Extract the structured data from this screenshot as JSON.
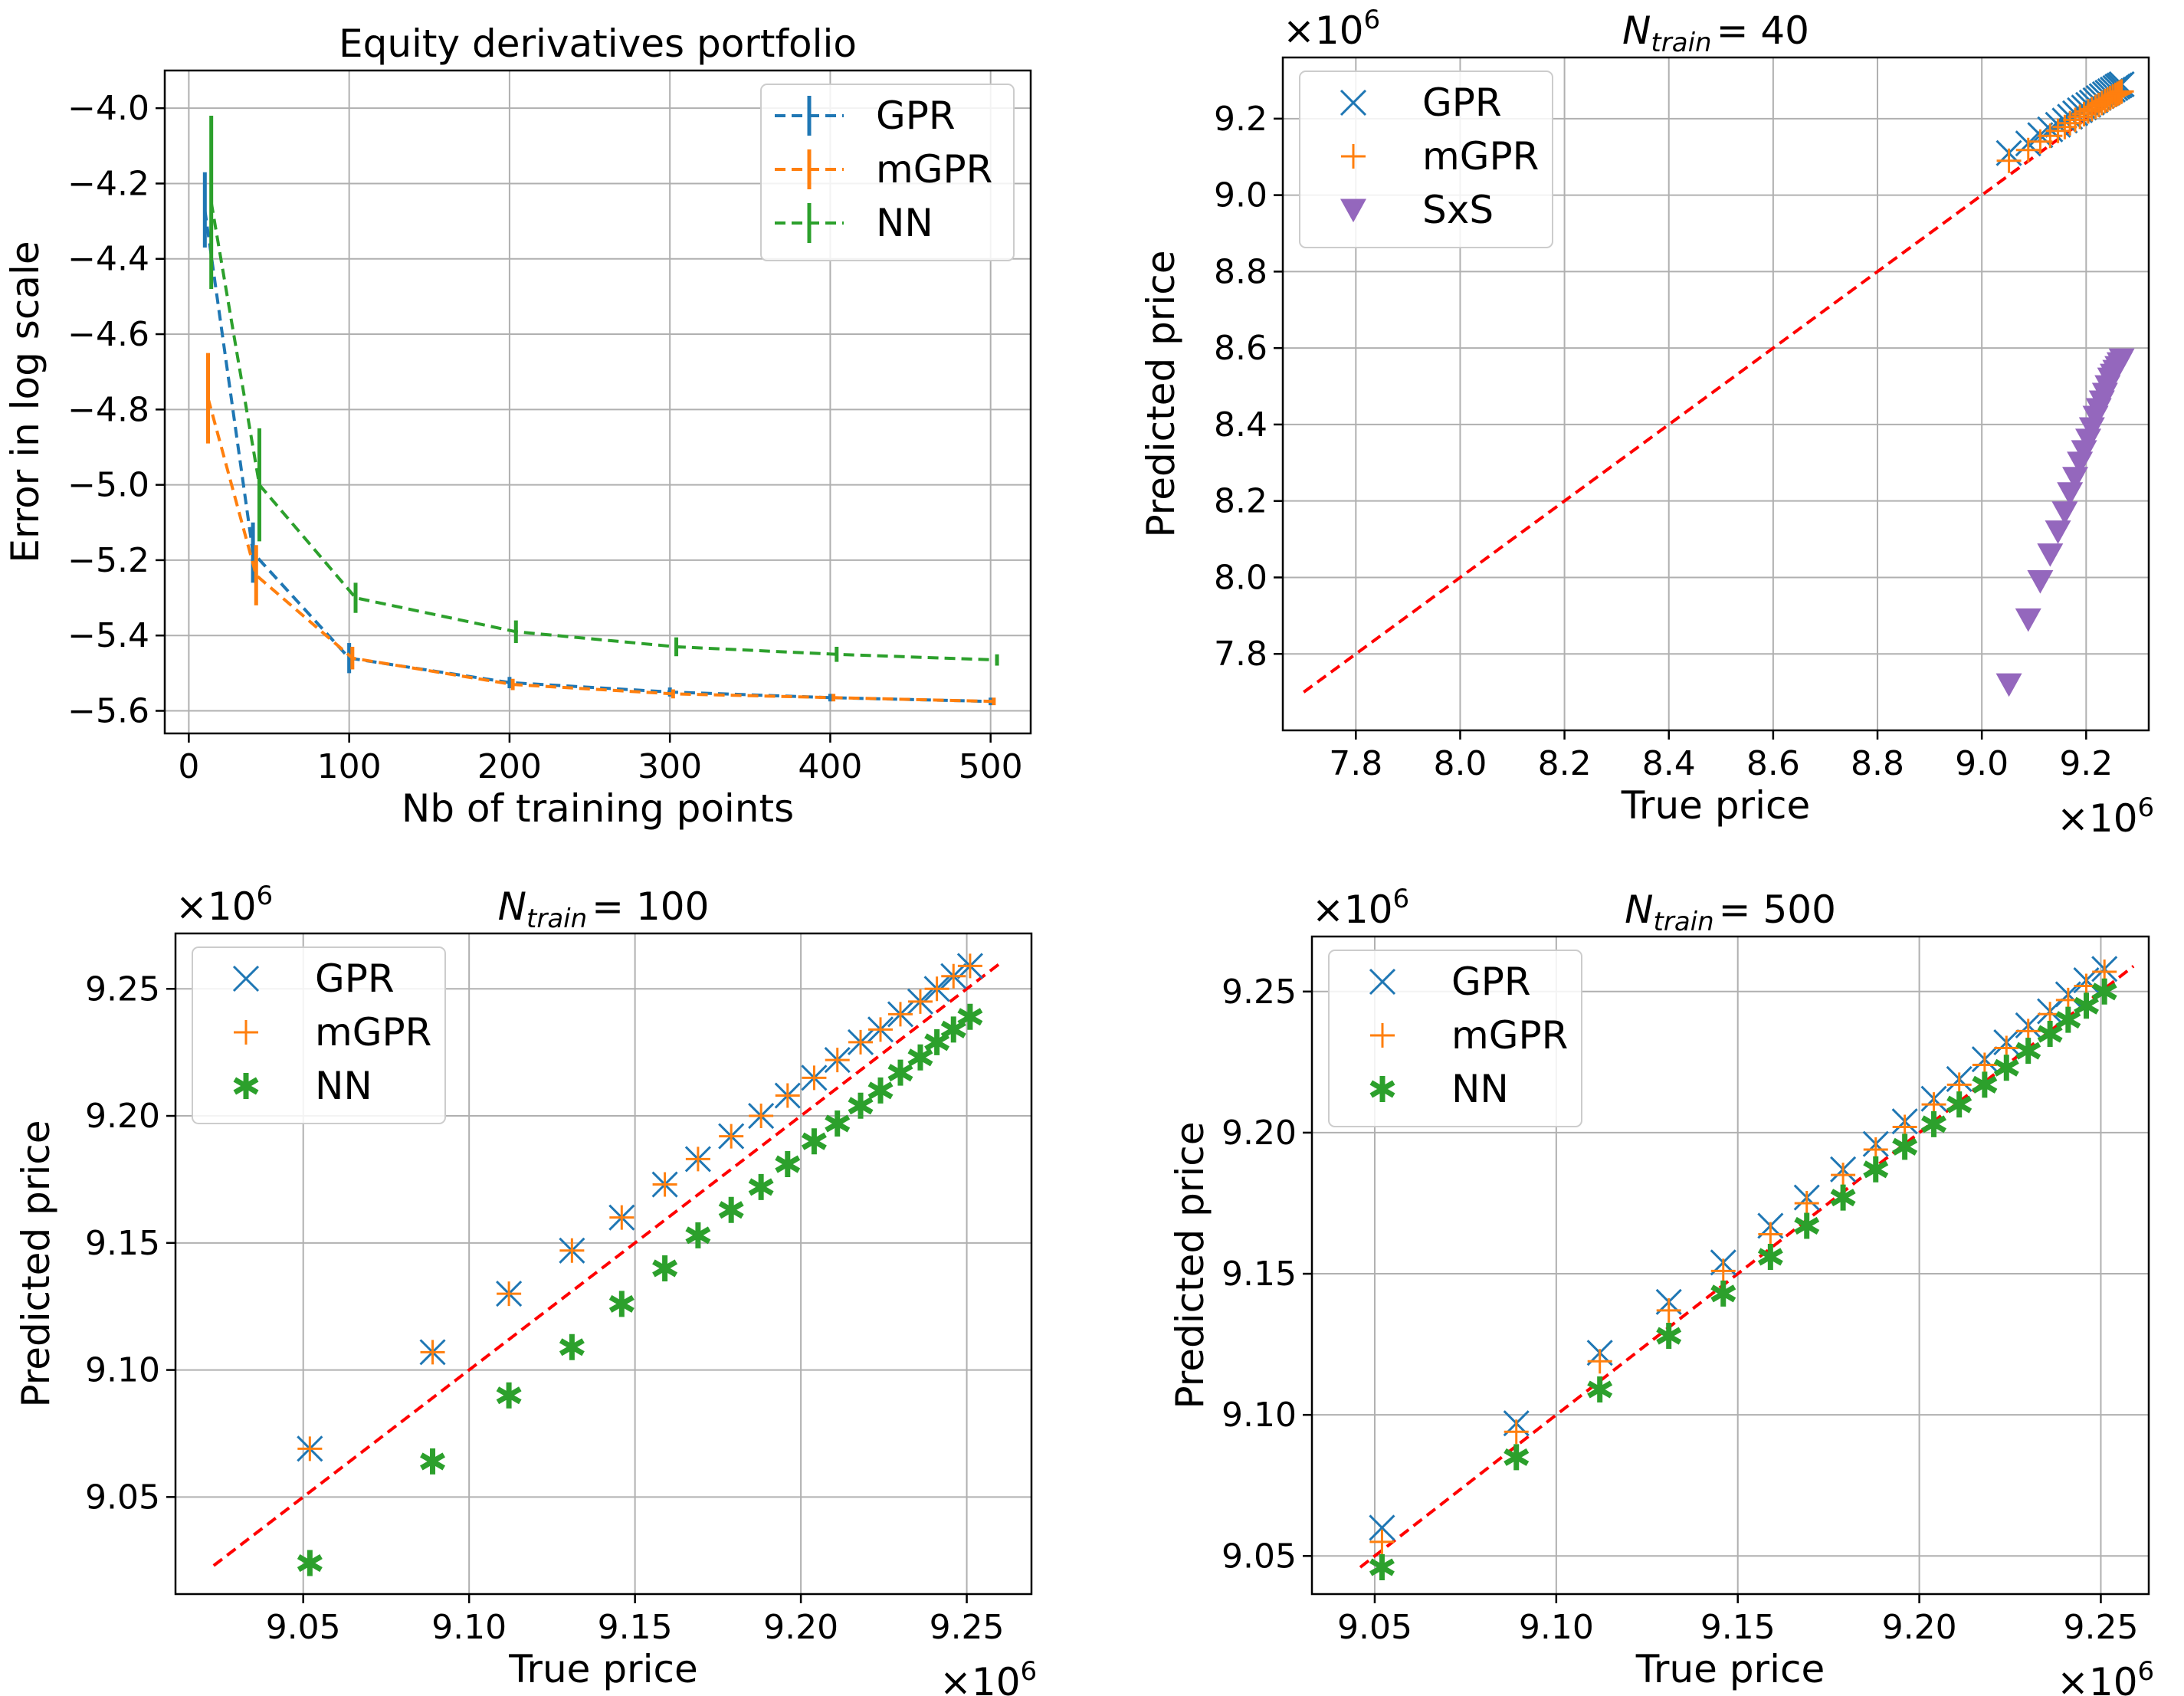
{
  "colors": {
    "GPR": "#1f77b4",
    "mGPR": "#ff7f0e",
    "NN": "#2ca02c",
    "SxS": "#9467bd",
    "diagonal": "#ff0000"
  },
  "chart_data": [
    {
      "type": "line",
      "title": "Equity derivatives portfolio",
      "xlabel": "Nb of training points",
      "ylabel": "Error in log scale",
      "xlim": [
        -15,
        525
      ],
      "ylim": [
        -5.66,
        -3.9
      ],
      "xticks": [
        0,
        100,
        200,
        300,
        400,
        500
      ],
      "xtick_labels": [
        "0",
        "100",
        "200",
        "300",
        "400",
        "500"
      ],
      "yticks": [
        -4.0,
        -4.2,
        -4.4,
        -4.6,
        -4.8,
        -5.0,
        -5.2,
        -5.4,
        -5.6
      ],
      "ytick_labels": [
        "−4.0",
        "−4.2",
        "−4.4",
        "−4.6",
        "−4.8",
        "−5.0",
        "−5.2",
        "−5.4",
        "−5.6"
      ],
      "legend_position": "top-right",
      "series": [
        {
          "name": "GPR",
          "x": [
            10,
            40,
            100,
            200,
            300,
            400,
            500
          ],
          "y": [
            -4.27,
            -5.18,
            -5.46,
            -5.525,
            -5.55,
            -5.565,
            -5.575
          ],
          "err": [
            0.1,
            0.08,
            0.04,
            0.015,
            0.012,
            0.01,
            0.01
          ]
        },
        {
          "name": "mGPR",
          "x": [
            12,
            42,
            102,
            202,
            302,
            402,
            502
          ],
          "y": [
            -4.77,
            -5.24,
            -5.46,
            -5.53,
            -5.555,
            -5.565,
            -5.575
          ],
          "err": [
            0.12,
            0.08,
            0.03,
            0.015,
            0.012,
            0.01,
            0.01
          ]
        },
        {
          "name": "NN",
          "x": [
            14,
            44,
            104,
            204,
            304,
            404,
            504
          ],
          "y": [
            -4.25,
            -5.0,
            -5.3,
            -5.39,
            -5.43,
            -5.45,
            -5.465
          ],
          "err": [
            0.23,
            0.15,
            0.04,
            0.03,
            0.025,
            0.02,
            0.015
          ]
        }
      ]
    },
    {
      "type": "scatter",
      "title_main": "N",
      "title_sub": "train",
      "title_rest": "= 40",
      "xlabel": "True price",
      "ylabel": "Predicted price",
      "x_multiplier": "×10",
      "y_multiplier": "×10",
      "multiplier_exp": "6",
      "xlim": [
        7.66,
        9.32
      ],
      "ylim": [
        7.6,
        9.36
      ],
      "xticks": [
        7.8,
        8.0,
        8.2,
        8.4,
        8.6,
        8.8,
        9.0,
        9.2
      ],
      "xtick_labels": [
        "7.8",
        "8.0",
        "8.2",
        "8.4",
        "8.6",
        "8.8",
        "9.0",
        "9.2"
      ],
      "yticks": [
        7.8,
        8.0,
        8.2,
        8.4,
        8.6,
        8.8,
        9.0,
        9.2
      ],
      "ytick_labels": [
        "7.8",
        "8.0",
        "8.2",
        "8.4",
        "8.6",
        "8.8",
        "9.0",
        "9.2"
      ],
      "diagonal": [
        7.7,
        9.27
      ],
      "legend_position": "top-left",
      "true_price": [
        9.052,
        9.089,
        9.112,
        9.131,
        9.146,
        9.159,
        9.169,
        9.179,
        9.188,
        9.196,
        9.204,
        9.211,
        9.218,
        9.224,
        9.23,
        9.236,
        9.241,
        9.246,
        9.251,
        9.256,
        9.26,
        9.264,
        9.268
      ],
      "series": [
        {
          "name": "GPR",
          "marker": "x",
          "values": [
            9.11,
            9.135,
            9.157,
            9.172,
            9.184,
            9.195,
            9.205,
            9.214,
            9.222,
            9.229,
            9.236,
            9.242,
            9.248,
            9.254,
            9.259,
            9.264,
            9.268,
            9.272,
            9.276,
            9.28,
            9.284,
            9.287,
            9.29
          ]
        },
        {
          "name": "mGPR",
          "marker": "+",
          "values": [
            9.09,
            9.118,
            9.14,
            9.155,
            9.168,
            9.178,
            9.188,
            9.197,
            9.205,
            9.212,
            9.219,
            9.225,
            9.231,
            9.236,
            9.241,
            9.246,
            9.25,
            9.254,
            9.258,
            9.262,
            9.265,
            9.268,
            9.271
          ]
        },
        {
          "name": "SxS",
          "marker": "v",
          "values": [
            7.72,
            7.89,
            7.99,
            8.06,
            8.12,
            8.17,
            8.22,
            8.26,
            8.3,
            8.33,
            8.36,
            8.39,
            8.42,
            8.44,
            8.46,
            8.48,
            8.5,
            8.52,
            8.53,
            8.54,
            8.55,
            8.56,
            8.57
          ]
        }
      ]
    },
    {
      "type": "scatter",
      "title_main": "N",
      "title_sub": "train",
      "title_rest": "= 100",
      "xlabel": "True price",
      "ylabel": "Predicted price",
      "x_multiplier": "×10",
      "y_multiplier": "×10",
      "multiplier_exp": "6",
      "xlim": [
        9.0115,
        9.2695
      ],
      "ylim": [
        9.0118,
        9.2718
      ],
      "xticks": [
        9.05,
        9.1,
        9.15,
        9.2,
        9.25
      ],
      "xtick_labels": [
        "9.05",
        "9.10",
        "9.15",
        "9.20",
        "9.25"
      ],
      "yticks": [
        9.05,
        9.1,
        9.15,
        9.2,
        9.25
      ],
      "ytick_labels": [
        "9.05",
        "9.10",
        "9.15",
        "9.20",
        "9.25"
      ],
      "diagonal": [
        9.023,
        9.26
      ],
      "legend_position": "top-left",
      "true_price": [
        9.052,
        9.089,
        9.112,
        9.131,
        9.146,
        9.159,
        9.169,
        9.179,
        9.188,
        9.196,
        9.204,
        9.211,
        9.218,
        9.224,
        9.23,
        9.236,
        9.241,
        9.246,
        9.251
      ],
      "series": [
        {
          "name": "GPR",
          "marker": "x",
          "values": [
            9.069,
            9.107,
            9.13,
            9.147,
            9.16,
            9.173,
            9.183,
            9.192,
            9.2,
            9.208,
            9.215,
            9.222,
            9.229,
            9.234,
            9.24,
            9.245,
            9.25,
            9.255,
            9.259
          ]
        },
        {
          "name": "mGPR",
          "marker": "+",
          "values": [
            9.069,
            9.107,
            9.13,
            9.147,
            9.16,
            9.173,
            9.183,
            9.192,
            9.2,
            9.208,
            9.215,
            9.222,
            9.229,
            9.234,
            9.24,
            9.245,
            9.25,
            9.255,
            9.259
          ]
        },
        {
          "name": "NN",
          "marker": "*",
          "values": [
            9.024,
            9.064,
            9.09,
            9.109,
            9.126,
            9.14,
            9.153,
            9.163,
            9.172,
            9.181,
            9.19,
            9.197,
            9.204,
            9.21,
            9.217,
            9.223,
            9.229,
            9.234,
            9.239
          ]
        }
      ]
    },
    {
      "type": "scatter",
      "title_main": "N",
      "title_sub": "train",
      "title_rest": "= 500",
      "xlabel": "True price",
      "ylabel": "Predicted price",
      "x_multiplier": "×10",
      "y_multiplier": "×10",
      "multiplier_exp": "6",
      "xlim": [
        9.0327,
        9.2632
      ],
      "ylim": [
        9.0365,
        9.2695
      ],
      "xticks": [
        9.05,
        9.1,
        9.15,
        9.2,
        9.25
      ],
      "xtick_labels": [
        "9.05",
        "9.10",
        "9.15",
        "9.20",
        "9.25"
      ],
      "yticks": [
        9.05,
        9.1,
        9.15,
        9.2,
        9.25
      ],
      "ytick_labels": [
        "9.05",
        "9.10",
        "9.15",
        "9.20",
        "9.25"
      ],
      "diagonal": [
        9.046,
        9.259
      ],
      "legend_position": "top-left",
      "true_price": [
        9.052,
        9.089,
        9.112,
        9.131,
        9.146,
        9.159,
        9.169,
        9.179,
        9.188,
        9.196,
        9.204,
        9.211,
        9.218,
        9.224,
        9.23,
        9.236,
        9.241,
        9.246,
        9.251
      ],
      "series": [
        {
          "name": "GPR",
          "marker": "x",
          "values": [
            9.06,
            9.097,
            9.122,
            9.14,
            9.154,
            9.167,
            9.177,
            9.187,
            9.196,
            9.204,
            9.212,
            9.219,
            9.226,
            9.232,
            9.238,
            9.243,
            9.249,
            9.254,
            9.258
          ]
        },
        {
          "name": "mGPR",
          "marker": "+",
          "values": [
            9.055,
            9.094,
            9.119,
            9.137,
            9.151,
            9.164,
            9.175,
            9.185,
            9.194,
            9.202,
            9.21,
            9.217,
            9.224,
            9.23,
            9.236,
            9.242,
            9.247,
            9.252,
            9.257
          ]
        },
        {
          "name": "NN",
          "marker": "*",
          "values": [
            9.046,
            9.085,
            9.109,
            9.128,
            9.143,
            9.156,
            9.167,
            9.177,
            9.187,
            9.195,
            9.203,
            9.21,
            9.217,
            9.223,
            9.229,
            9.235,
            9.24,
            9.245,
            9.25
          ]
        }
      ]
    }
  ]
}
